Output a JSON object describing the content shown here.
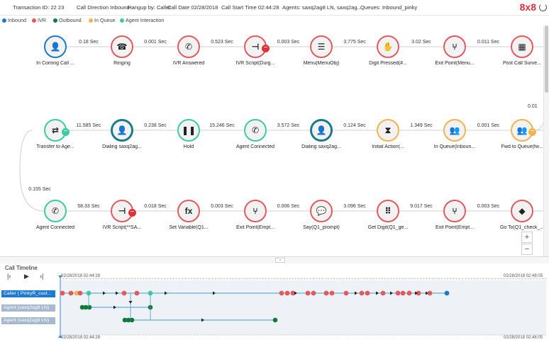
{
  "header": {
    "transaction": "Transaction ID: 22 23",
    "direction": "Call Direction Inbound",
    "hangup": "Hangup by: Caller",
    "date": "Call Date 02/28/2018",
    "start": "Call Start Time 02:44:28",
    "agents": "Agents: saxq2ag8 LN, saxq2ag...",
    "queues": "Queues: Inbound_pinky",
    "brand": "8x8"
  },
  "legend": [
    {
      "label": "Inbound",
      "color": "#1f78c8"
    },
    {
      "label": "IVR",
      "color": "#e05a5f"
    },
    {
      "label": "Outbound",
      "color": "#0f7a3c"
    },
    {
      "label": "In Queue",
      "color": "#f0b451"
    },
    {
      "label": "Agent Interaction",
      "color": "#3fcaa0"
    }
  ],
  "flow": {
    "row1": {
      "nodes": [
        {
          "label": "In Coming Call ...",
          "icon": "person-icon",
          "glyph": "👤",
          "type": "blue"
        },
        {
          "label": "Ringing",
          "icon": "ringing-phone-icon",
          "glyph": "☎",
          "type": "red"
        },
        {
          "label": "IVR Answered",
          "icon": "phone-answered-icon",
          "glyph": "✆",
          "type": "red"
        },
        {
          "label": "IVR Script(Durg...",
          "icon": "script-branch-icon",
          "glyph": "⊣",
          "type": "red"
        },
        {
          "label": "Menu(MenuObj)",
          "icon": "menu-icon",
          "glyph": "☰",
          "type": "red"
        },
        {
          "label": "Digit Pressed(#...",
          "icon": "hand-dial-icon",
          "glyph": "✋",
          "type": "red"
        },
        {
          "label": "Exit Point(Menu...",
          "icon": "fork-icon",
          "glyph": "⑂",
          "type": "red"
        },
        {
          "label": "Post Call Surve...",
          "icon": "survey-icon",
          "glyph": "▦",
          "type": "red"
        }
      ],
      "edges": [
        "0.18 Sec",
        "0.001 Sec",
        "0.523 Sec",
        "0.003 Sec",
        "3.775 Sec",
        "3.02 Sec",
        "0.011 Sec"
      ]
    },
    "row2": {
      "nodes": [
        {
          "label": "Transfer to Age...",
          "icon": "transfer-icon",
          "glyph": "⇄",
          "type": "teal"
        },
        {
          "label": "Dialing saxq2ag...",
          "icon": "agent-icon",
          "glyph": "👤",
          "type": "darkteal"
        },
        {
          "label": "Hold",
          "icon": "pause-icon",
          "glyph": "❚❚",
          "type": "teal"
        },
        {
          "label": "Agent Connected",
          "icon": "phone-connected-icon",
          "glyph": "✆",
          "type": "teal"
        },
        {
          "label": "Dialing saxq2ag...",
          "icon": "agent-icon",
          "glyph": "👤",
          "type": "darkteal"
        },
        {
          "label": "Initial Action(...",
          "icon": "hourglass-icon",
          "glyph": "⧗",
          "type": "orange"
        },
        {
          "label": "In Queue(Inboun...",
          "icon": "group-icon",
          "glyph": "👥",
          "type": "orange"
        },
        {
          "label": "Fwd to Queue(fw...",
          "icon": "group-forward-icon",
          "glyph": "👥",
          "type": "orange"
        }
      ],
      "edges": [
        "11.585 Sec",
        "0.238 Sec",
        "15.246 Sec",
        "3.572 Sec",
        "0.124 Sec",
        "1.349 Sec",
        "0.001 Sec"
      ]
    },
    "row3": {
      "nodes": [
        {
          "label": "Agent Connected",
          "icon": "phone-connected-icon",
          "glyph": "✆",
          "type": "teal"
        },
        {
          "label": "IVR Script(**SA...",
          "icon": "script-branch-icon",
          "glyph": "⊣",
          "type": "red"
        },
        {
          "label": "Set Variable(Q1...",
          "icon": "function-icon",
          "glyph": "fx",
          "type": "red"
        },
        {
          "label": "Exit Point(Empt...",
          "icon": "fork-icon",
          "glyph": "⑂",
          "type": "red"
        },
        {
          "label": "Say(Q1_prompt)",
          "icon": "speech-icon",
          "glyph": "💬",
          "type": "red"
        },
        {
          "label": "Get Digit(Q1_ge...",
          "icon": "keypad-icon",
          "glyph": "⠿",
          "type": "red"
        },
        {
          "label": "Exit Point(Empt...",
          "icon": "fork-icon",
          "glyph": "⑂",
          "type": "red"
        },
        {
          "label": "Go To(Q1_check_...",
          "icon": "tag-icon",
          "glyph": "◆",
          "type": "red"
        }
      ],
      "edges": [
        "58.33 Sec",
        "0.018 Sec",
        "0.003 Sec",
        "0.006 Sec",
        "3.096 Sec",
        "9.017 Sec",
        "0.003 Sec"
      ]
    },
    "connector_left": "0.155 Sec",
    "connector_right": "0.01",
    "zoom_in": "+",
    "zoom_out": "−"
  },
  "timeline": {
    "title": "Call Timeline",
    "controls": [
      "|‹",
      "▶",
      "›|"
    ],
    "time_start": "02/28/2018 02:44:28",
    "time_end": "02/28/2018 02:48:05",
    "rows": [
      {
        "label": "Caller ( PinkyR_cust...",
        "active": true
      },
      {
        "label": "Agent (saxq2ag8 LN)",
        "active": false
      },
      {
        "label": "Agent (saxq2ag8 LN)",
        "active": false
      }
    ]
  }
}
